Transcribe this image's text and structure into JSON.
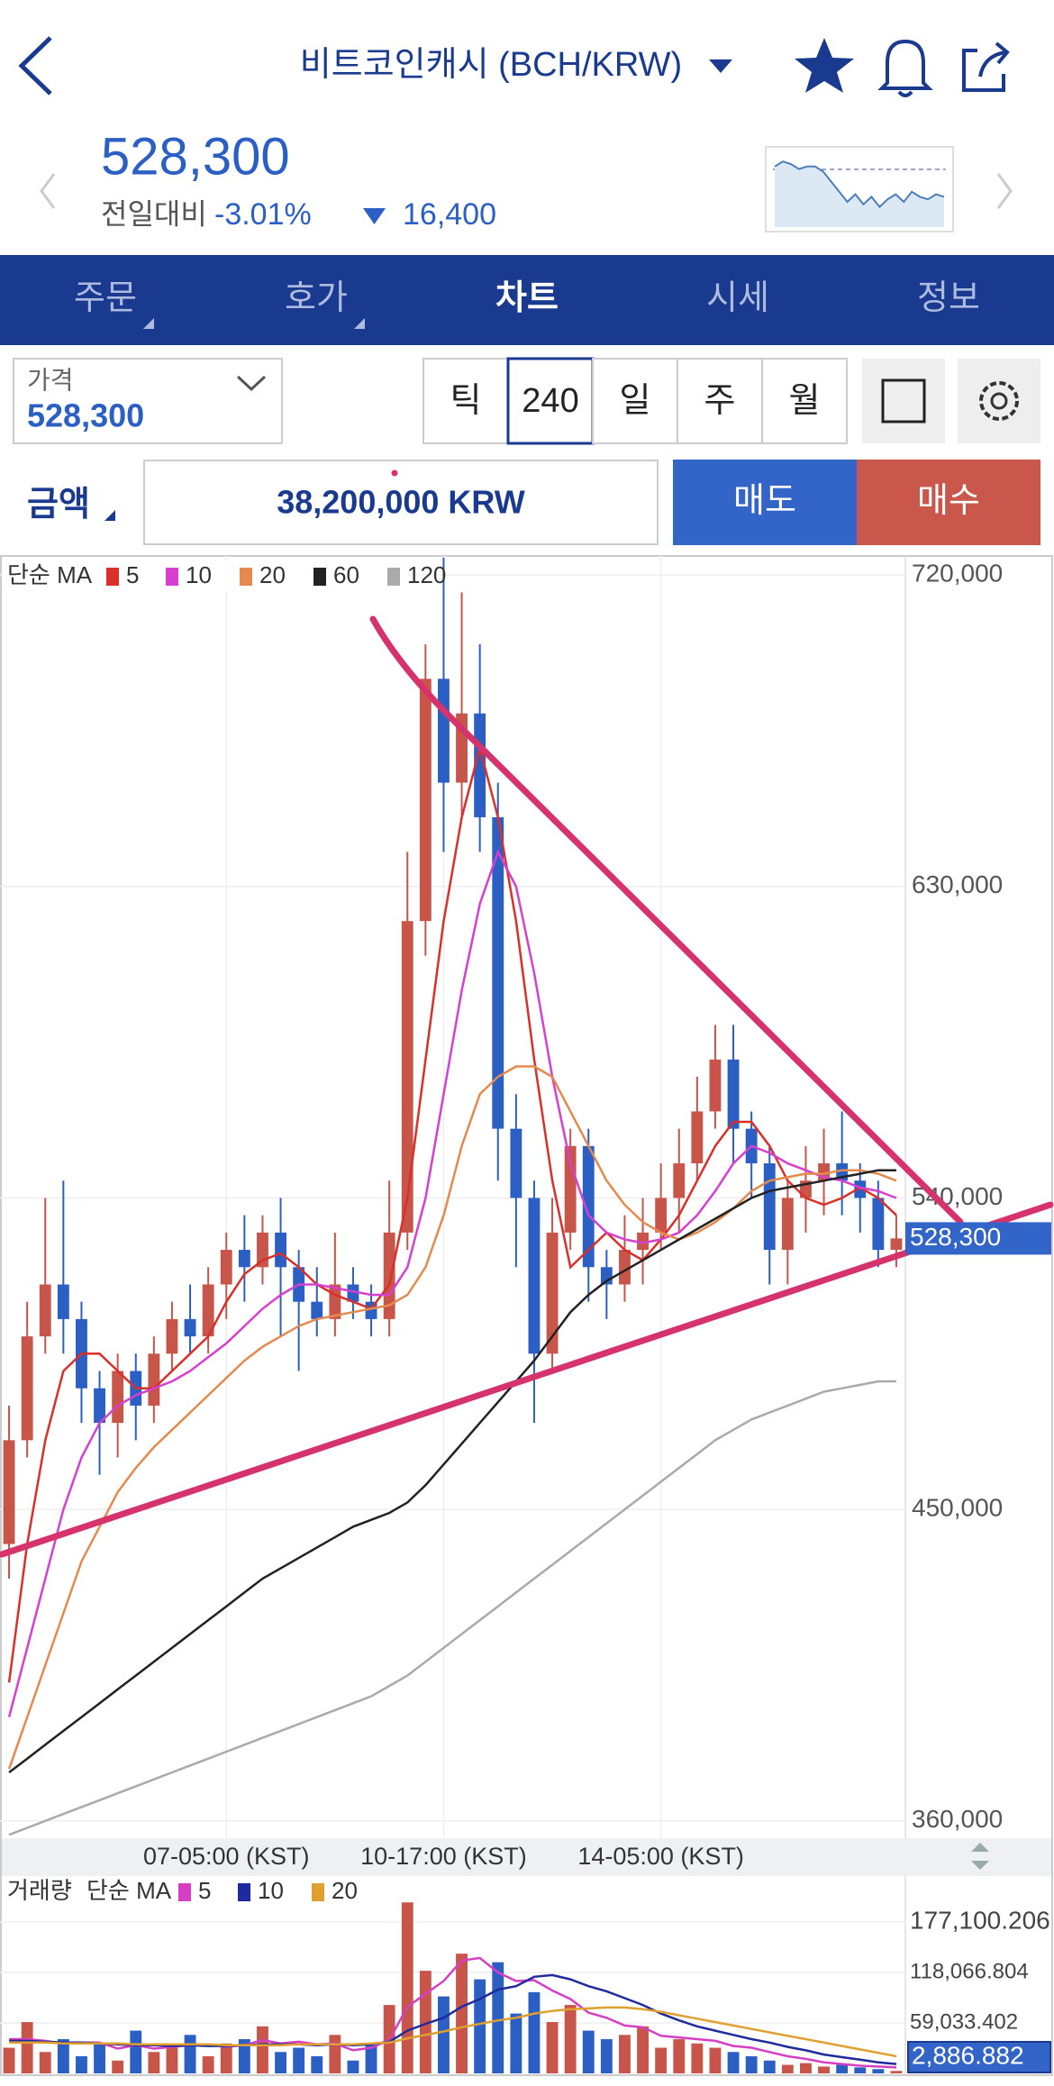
{
  "header": {
    "title": "비트코인캐시 (BCH/KRW)"
  },
  "price_panel": {
    "price": "528,300",
    "change_label": "전일대비",
    "change_pct": "-3.01%",
    "change_amount": "16,400"
  },
  "tabs": [
    "주문",
    "호가",
    "차트",
    "시세",
    "정보"
  ],
  "controls": {
    "price_label": "가격",
    "price": "528,300",
    "intervals": [
      "틱",
      "240",
      "일",
      "주",
      "월"
    ]
  },
  "order": {
    "amount_label": "금액",
    "amount": "38,200,000 KRW",
    "sell": "매도",
    "buy": "매수"
  },
  "chart_data": [
    {
      "type": "candlestick",
      "legend_title": "단순 MA",
      "categories": [
        null,
        null,
        null,
        null,
        null,
        null,
        null,
        null,
        null,
        null,
        null,
        null,
        "07-05:00 (KST)",
        null,
        null,
        null,
        null,
        null,
        null,
        null,
        null,
        null,
        null,
        null,
        "10-17:00 (KST)",
        null,
        null,
        null,
        null,
        null,
        null,
        null,
        null,
        null,
        null,
        null,
        "14-05:00 (KST)",
        null,
        null,
        null,
        null,
        null,
        null,
        null,
        null,
        null,
        null,
        null,
        null,
        null
      ],
      "open": [
        440000,
        470000,
        500000,
        515000,
        505000,
        485000,
        475000,
        490000,
        480000,
        495000,
        505000,
        500000,
        515000,
        525000,
        520000,
        530000,
        520000,
        510000,
        505000,
        515000,
        510000,
        505000,
        530000,
        620000,
        690000,
        660000,
        680000,
        650000,
        560000,
        540000,
        495000,
        530000,
        555000,
        520000,
        515000,
        525000,
        530000,
        540000,
        550000,
        565000,
        580000,
        560000,
        550000,
        525000,
        540000,
        545000,
        550000,
        545000,
        540000,
        525000
      ],
      "high": [
        480000,
        510000,
        540000,
        545000,
        510000,
        490000,
        495000,
        495000,
        500000,
        510000,
        515000,
        520000,
        530000,
        535000,
        535000,
        540000,
        525000,
        520000,
        530000,
        520000,
        515000,
        545000,
        640000,
        700000,
        725000,
        715000,
        700000,
        660000,
        570000,
        545000,
        540000,
        560000,
        560000,
        525000,
        535000,
        540000,
        550000,
        560000,
        575000,
        590000,
        590000,
        565000,
        555000,
        545000,
        555000,
        560000,
        565000,
        550000,
        545000,
        535000
      ],
      "low": [
        430000,
        465000,
        495000,
        495000,
        475000,
        460000,
        465000,
        470000,
        475000,
        490000,
        495000,
        495000,
        505000,
        510000,
        515000,
        500000,
        490000,
        500000,
        500000,
        505000,
        500000,
        500000,
        525000,
        610000,
        640000,
        650000,
        640000,
        545000,
        520000,
        475000,
        490000,
        525000,
        510000,
        505000,
        510000,
        515000,
        525000,
        530000,
        545000,
        560000,
        550000,
        540000,
        515000,
        515000,
        530000,
        535000,
        535000,
        530000,
        520000,
        520000
      ],
      "close": [
        470000,
        500000,
        515000,
        505000,
        485000,
        475000,
        490000,
        480000,
        495000,
        505000,
        500000,
        515000,
        525000,
        520000,
        530000,
        520000,
        510000,
        505000,
        515000,
        510000,
        505000,
        530000,
        620000,
        690000,
        660000,
        680000,
        650000,
        560000,
        540000,
        495000,
        530000,
        555000,
        520000,
        515000,
        525000,
        530000,
        540000,
        550000,
        565000,
        580000,
        560000,
        550000,
        525000,
        540000,
        545000,
        550000,
        545000,
        540000,
        525000,
        528300
      ],
      "up_color": "#c8554a",
      "down_color": "#2b5fc4",
      "series": [
        {
          "name": "5",
          "color": "#d9302a",
          "values": [
            400000,
            440000,
            470000,
            490000,
            495000,
            495000,
            490000,
            485000,
            485000,
            490000,
            495000,
            500000,
            510000,
            518000,
            522000,
            524000,
            520000,
            515000,
            512000,
            510000,
            508000,
            515000,
            540000,
            580000,
            620000,
            650000,
            670000,
            650000,
            620000,
            580000,
            545000,
            520000,
            525000,
            530000,
            525000,
            522000,
            528000,
            535000,
            545000,
            555000,
            562000,
            562000,
            555000,
            545000,
            540000,
            538000,
            540000,
            543000,
            540000,
            535000
          ]
        },
        {
          "name": "10",
          "color": "#d63fd0",
          "values": [
            390000,
            410000,
            430000,
            450000,
            465000,
            475000,
            480000,
            483000,
            485000,
            487000,
            490000,
            494000,
            498000,
            503000,
            508000,
            512000,
            515000,
            515000,
            514000,
            513000,
            512000,
            512000,
            520000,
            540000,
            570000,
            600000,
            625000,
            640000,
            630000,
            605000,
            575000,
            550000,
            535000,
            530000,
            528000,
            527000,
            528000,
            530000,
            535000,
            542000,
            550000,
            555000,
            553000,
            550000,
            548000,
            546000,
            545000,
            543000,
            542000,
            540000
          ]
        },
        {
          "name": "20",
          "color": "#e58a4e",
          "values": [
            375000,
            390000,
            405000,
            420000,
            435000,
            445000,
            455000,
            462000,
            468000,
            473000,
            478000,
            483000,
            488000,
            493000,
            497000,
            500000,
            503000,
            505000,
            506000,
            507000,
            508000,
            509000,
            512000,
            520000,
            535000,
            555000,
            570000,
            575000,
            578000,
            578000,
            575000,
            565000,
            555000,
            545000,
            538000,
            533000,
            530000,
            528000,
            530000,
            533000,
            537000,
            542000,
            545000,
            546000,
            547000,
            547000,
            548000,
            548000,
            547000,
            545000
          ]
        },
        {
          "name": "60",
          "color": "#222222",
          "values": [
            374000,
            378000,
            382000,
            386000,
            390000,
            394000,
            398000,
            402000,
            406000,
            410000,
            414000,
            418000,
            422000,
            426000,
            430000,
            433000,
            436000,
            439000,
            442000,
            445000,
            447000,
            449000,
            452000,
            457000,
            463000,
            469000,
            475000,
            481000,
            487000,
            493000,
            500000,
            507000,
            512000,
            516000,
            519000,
            522000,
            525000,
            528000,
            531000,
            534000,
            537000,
            540000,
            542000,
            543000,
            544000,
            545000,
            546000,
            547000,
            548000,
            548000
          ]
        },
        {
          "name": "120",
          "color": "#aaaaaa",
          "values": [
            356000,
            358000,
            360000,
            362000,
            364000,
            366000,
            368000,
            370000,
            372000,
            374000,
            376000,
            378000,
            380000,
            382000,
            384000,
            386000,
            388000,
            390000,
            392000,
            394000,
            396000,
            399000,
            402000,
            406000,
            410000,
            414000,
            418000,
            422000,
            426000,
            430000,
            434000,
            438000,
            442000,
            446000,
            450000,
            454000,
            458000,
            462000,
            466000,
            470000,
            473000,
            476000,
            478000,
            480000,
            482000,
            484000,
            485000,
            486000,
            487000,
            487000
          ]
        }
      ],
      "ylim": [
        355000,
        725500
      ],
      "yticks": [
        {
          "value": 360000,
          "label": "360,000"
        },
        {
          "value": 450000,
          "label": "450,000"
        },
        {
          "value": 540000,
          "label": "540,000"
        },
        {
          "value": 630000,
          "label": "630,000"
        },
        {
          "value": 720000,
          "label": "720,000"
        }
      ],
      "grid": true,
      "last_value_label": "528,300"
    },
    {
      "type": "bar",
      "legend_title": "거래량",
      "ma_title": "단순 MA",
      "values": [
        30000,
        60000,
        25000,
        40000,
        20000,
        35000,
        15000,
        50000,
        25000,
        30000,
        45000,
        20000,
        35000,
        40000,
        55000,
        25000,
        30000,
        20000,
        45000,
        15000,
        35000,
        80000,
        200000,
        120000,
        90000,
        140000,
        110000,
        130000,
        70000,
        95000,
        60000,
        80000,
        50000,
        40000,
        45000,
        55000,
        30000,
        40000,
        35000,
        30000,
        25000,
        20000,
        15000,
        10000,
        12000,
        8000,
        10000,
        7000,
        5000,
        2886.882
      ],
      "series": [
        {
          "name": "5",
          "color": "#d63fc4",
          "values": [
            40000,
            40000,
            38000,
            35000,
            36000,
            36000,
            29000,
            33000,
            29000,
            31000,
            33000,
            34000,
            31000,
            33000,
            39000,
            35000,
            37000,
            34000,
            35000,
            27000,
            30000,
            39000,
            78000,
            93000,
            108000,
            132000,
            135000,
            118000,
            108000,
            109000,
            97000,
            87000,
            71000,
            65000,
            56000,
            54000,
            44000,
            42000,
            40000,
            38000,
            32000,
            30000,
            25000,
            20000,
            17000,
            13000,
            11000,
            9000,
            8000,
            7000
          ]
        },
        {
          "name": "10",
          "color": "#1f2b9c",
          "values": [
            38000,
            38000,
            37000,
            36000,
            36000,
            35000,
            34000,
            33000,
            33000,
            32000,
            33000,
            32000,
            32000,
            33000,
            34000,
            34000,
            34000,
            33000,
            34000,
            33000,
            34000,
            37000,
            50000,
            58000,
            65000,
            78000,
            87000,
            98000,
            102000,
            113000,
            115000,
            110000,
            102000,
            96000,
            88000,
            80000,
            70000,
            62000,
            55000,
            50000,
            45000,
            40000,
            36000,
            31000,
            27000,
            22000,
            19000,
            16000,
            13000,
            11000
          ]
        },
        {
          "name": "20",
          "color": "#e0a030",
          "values": [
            36000,
            36000,
            36000,
            35000,
            35000,
            35000,
            35000,
            34000,
            34000,
            34000,
            34000,
            34000,
            33000,
            33000,
            33000,
            33000,
            34000,
            34000,
            34000,
            34000,
            35000,
            36000,
            41000,
            45000,
            49000,
            54000,
            58000,
            62000,
            65000,
            70000,
            73000,
            75000,
            76000,
            77000,
            77000,
            75000,
            72000,
            68000,
            64000,
            60000,
            56000,
            52000,
            48000,
            44000,
            40000,
            36000,
            32000,
            28000,
            24000,
            20000
          ]
        }
      ],
      "ylim": [
        0,
        201300
      ],
      "yticks": [
        {
          "value": 59033.402,
          "label": "59,033.402"
        },
        {
          "value": 118066.804,
          "label": "118,066.804"
        },
        {
          "value": 177100.206,
          "label": "177,100.206"
        }
      ],
      "grid": true,
      "last_value_label": "2,886.882"
    },
    {
      "type": "line",
      "values": [
        24,
        26,
        25,
        23,
        24,
        24,
        22,
        18,
        14,
        10,
        13,
        9,
        12,
        8,
        11,
        13,
        10,
        14,
        12,
        11,
        13,
        12
      ],
      "color": "#4a7fb8",
      "ylim": [
        0,
        30
      ]
    }
  ]
}
